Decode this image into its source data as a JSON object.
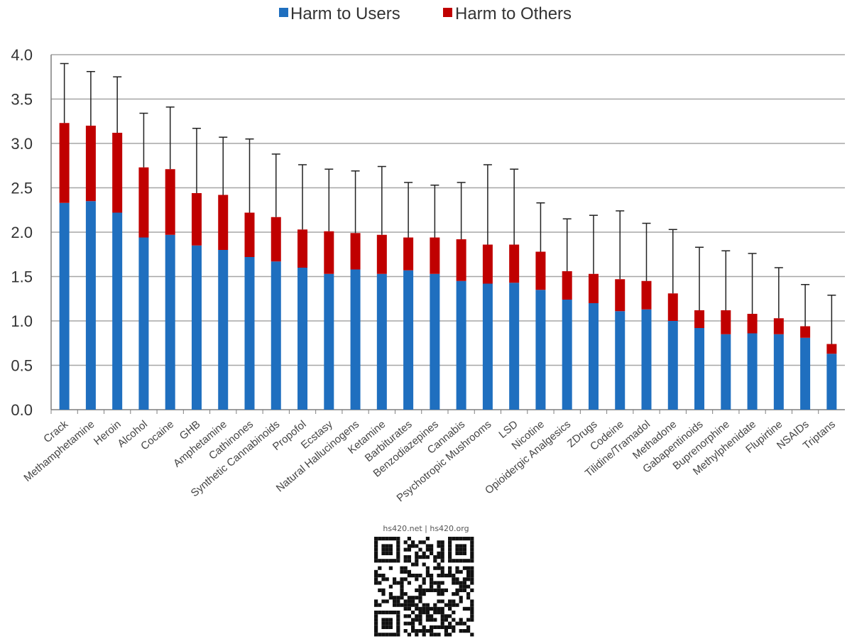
{
  "chart_data": {
    "type": "bar",
    "stacked": true,
    "title": "",
    "xlabel": "",
    "ylabel": "",
    "ylim": [
      0,
      4.0
    ],
    "yticks": [
      "0.0",
      "0.5",
      "1.0",
      "1.5",
      "2.0",
      "2.5",
      "3.0",
      "3.5",
      "4.0"
    ],
    "grid": true,
    "legend_position": "top-center",
    "categories": [
      "Crack",
      "Methamphetamine",
      "Heroin",
      "Alcohol",
      "Cocaine",
      "GHB",
      "Amphetamine",
      "Cathinones",
      "Synthetic Cannabinoids",
      "Propofol",
      "Ecstasy",
      "Natural Hallucinogens",
      "Ketamine",
      "Barbiturates",
      "Benzodiazepines",
      "Cannabis",
      "Psychotropic Mushrooms",
      "LSD",
      "Nicotine",
      "Opioidergic Analgesics",
      "ZDrugs",
      "Codeine",
      "Tilidine/Tramadol",
      "Methadone",
      "Gabapentinoids",
      "Buprenorphine",
      "Methylphenidate",
      "Flupirtine",
      "NSAIDs",
      "Triptans"
    ],
    "series": [
      {
        "name": "Harm to Users",
        "color": "#1f6fbf",
        "values": [
          2.33,
          2.35,
          2.22,
          1.94,
          1.97,
          1.85,
          1.8,
          1.72,
          1.67,
          1.6,
          1.53,
          1.58,
          1.53,
          1.57,
          1.53,
          1.45,
          1.42,
          1.43,
          1.35,
          1.24,
          1.2,
          1.11,
          1.13,
          1.0,
          0.92,
          0.85,
          0.86,
          0.85,
          0.81,
          0.63
        ]
      },
      {
        "name": "Harm to Others",
        "color": "#c00000",
        "values": [
          0.9,
          0.85,
          0.9,
          0.79,
          0.74,
          0.59,
          0.62,
          0.5,
          0.5,
          0.43,
          0.48,
          0.41,
          0.44,
          0.37,
          0.41,
          0.47,
          0.44,
          0.43,
          0.43,
          0.32,
          0.33,
          0.36,
          0.32,
          0.31,
          0.2,
          0.27,
          0.22,
          0.18,
          0.13,
          0.11
        ]
      }
    ],
    "error_bar_top": [
      3.9,
      3.81,
      3.75,
      3.34,
      3.41,
      3.17,
      3.07,
      3.05,
      2.88,
      2.76,
      2.71,
      2.69,
      2.74,
      2.56,
      2.53,
      2.56,
      2.76,
      2.71,
      2.33,
      2.15,
      2.19,
      2.24,
      2.1,
      2.03,
      1.83,
      1.79,
      1.76,
      1.6,
      1.41,
      1.29
    ]
  },
  "qr_caption": "hs420.net | hs420.org"
}
